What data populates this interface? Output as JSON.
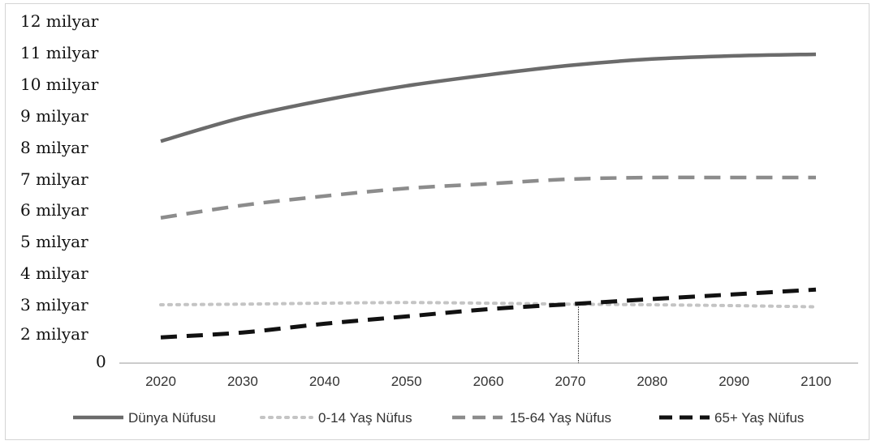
{
  "chart_data": {
    "type": "line",
    "title": "",
    "xlabel": "",
    "ylabel": "",
    "x": [
      2020,
      2030,
      2040,
      2050,
      2060,
      2070,
      2080,
      2090,
      2100
    ],
    "x_tick_labels": [
      "2020",
      "2030",
      "2040",
      "2050",
      "2060",
      "2070",
      "2080",
      "2090",
      "2100"
    ],
    "y_tick_labels": [
      "0",
      "2 milyar",
      "3 milyar",
      "4 milyar",
      "5 milyar",
      "6 milyar",
      "7 milyar",
      "8 milyar",
      "9 milyar",
      "10 milyar",
      "11 milyar",
      "12 milyar"
    ],
    "grid": false,
    "legend_position": "bottom",
    "series": [
      {
        "name": "Dünya Nüfusu",
        "style": "solid",
        "color": "#6b6b6b",
        "values": [
          8.2,
          8.95,
          9.5,
          9.95,
          10.3,
          10.6,
          10.8,
          10.9,
          10.95
        ]
      },
      {
        "name": "0-14 Yaş Nüfus",
        "style": "dotted",
        "color": "#c4c4c4",
        "values": [
          3.0,
          3.02,
          3.05,
          3.07,
          3.05,
          3.02,
          3.0,
          2.97,
          2.93
        ]
      },
      {
        "name": "15-64 Yaş Nüfus",
        "style": "dashed",
        "color": "#8c8c8c",
        "values": [
          5.75,
          6.15,
          6.45,
          6.7,
          6.85,
          7.0,
          7.05,
          7.05,
          7.05
        ]
      },
      {
        "name": "65+ Yaş Nüfus",
        "style": "dashed",
        "color": "#111111",
        "values": [
          1.75,
          2.05,
          2.35,
          2.6,
          2.85,
          3.02,
          3.18,
          3.33,
          3.48
        ]
      }
    ],
    "annotations": [
      {
        "type": "vertical-line",
        "x": 2071,
        "from": 0,
        "to": 3.02
      }
    ]
  }
}
